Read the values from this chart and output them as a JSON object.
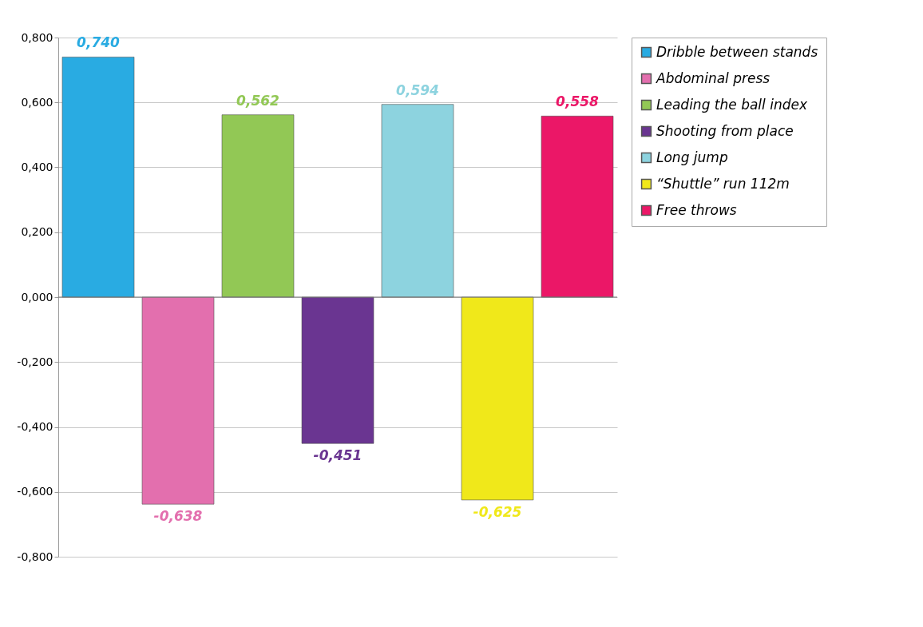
{
  "chart_data": {
    "type": "bar",
    "categories": [
      null,
      null,
      null,
      null,
      null,
      null,
      null
    ],
    "series": [
      {
        "name": "Dribble between stands",
        "color": "#29abe2",
        "values": [
          0.74,
          null,
          null,
          null,
          null,
          null,
          null
        ],
        "value_labels": [
          "0,740",
          null,
          null,
          null,
          null,
          null,
          null
        ]
      },
      {
        "name": "Abdominal press",
        "color": "#e36fae",
        "values": [
          null,
          -0.638,
          null,
          null,
          null,
          null,
          null
        ],
        "value_labels": [
          null,
          "-0,638",
          null,
          null,
          null,
          null,
          null
        ]
      },
      {
        "name": "Leading the ball index",
        "color": "#92c855",
        "values": [
          null,
          null,
          0.562,
          null,
          null,
          null,
          null
        ],
        "value_labels": [
          null,
          null,
          "0,562",
          null,
          null,
          null,
          null
        ]
      },
      {
        "name": "Shooting from place",
        "color": "#6a3591",
        "values": [
          null,
          null,
          null,
          -0.451,
          null,
          null,
          null
        ],
        "value_labels": [
          null,
          null,
          null,
          "-0,451",
          null,
          null,
          null
        ]
      },
      {
        "name": "Long jump",
        "color": "#8dd3df",
        "values": [
          null,
          null,
          null,
          null,
          0.594,
          null,
          null
        ],
        "value_labels": [
          null,
          null,
          null,
          null,
          "0,594",
          null,
          null
        ]
      },
      {
        "name": "“Shuttle” run 112m",
        "color": "#f0e81a",
        "values": [
          null,
          null,
          null,
          null,
          null,
          -0.625,
          null
        ],
        "value_labels": [
          null,
          null,
          null,
          null,
          null,
          "-0,625",
          null
        ]
      },
      {
        "name": "Free throws",
        "color": "#eb1767",
        "values": [
          null,
          null,
          null,
          null,
          null,
          null,
          0.558
        ],
        "value_labels": [
          null,
          null,
          null,
          null,
          null,
          null,
          "0,558"
        ]
      }
    ],
    "ylim": [
      -0.8,
      0.8
    ],
    "yticks": [
      {
        "value": -0.8,
        "label": "-0,800"
      },
      {
        "value": -0.6,
        "label": "-0,600"
      },
      {
        "value": -0.4,
        "label": "-0,400"
      },
      {
        "value": -0.2,
        "label": "-0,200"
      },
      {
        "value": 0,
        "label": "0,000"
      },
      {
        "value": 0.2,
        "label": "0,200"
      },
      {
        "value": 0.4,
        "label": "0,400"
      },
      {
        "value": 0.6,
        "label": "0,600"
      },
      {
        "value": 0.8,
        "label": "0,800"
      }
    ],
    "grid": "y",
    "legend": "right"
  }
}
